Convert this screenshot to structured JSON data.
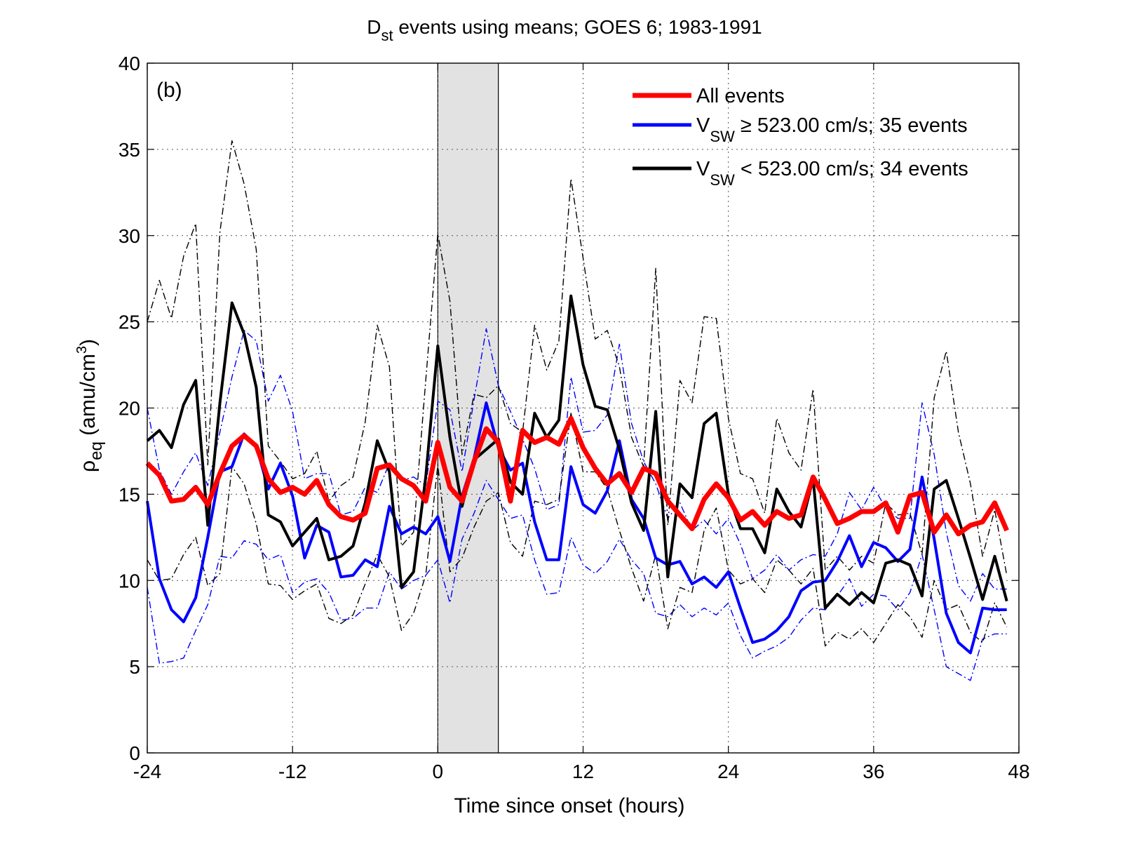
{
  "chart_data": {
    "type": "line",
    "title": {
      "main": "D",
      "sub": "st",
      "rest": " events using means; GOES 6; 1983-1991"
    },
    "panel_label": "(b)",
    "xlabel": "Time since onset (hours)",
    "ylabel": {
      "main": "ρ",
      "sub": "eq",
      "rest": " (amu/cm",
      "sup": "3",
      "close": ")"
    },
    "xlim": [
      -24,
      48
    ],
    "ylim": [
      0,
      40
    ],
    "xticks": [
      -24,
      -12,
      0,
      12,
      24,
      36,
      48
    ],
    "yticks": [
      0,
      5,
      10,
      15,
      20,
      25,
      30,
      35,
      40
    ],
    "grid": true,
    "shaded_interval": [
      0,
      5
    ],
    "legend_position": "top-right",
    "legend": [
      {
        "main": "All events",
        "sub": "",
        "rest": "",
        "color": "#ff0000"
      },
      {
        "main": "V",
        "sub": "SW",
        "rest": " ≥ 523.00 cm/s; 35 events",
        "color": "#0000ff"
      },
      {
        "main": "V",
        "sub": "SW",
        "rest": " < 523.00 cm/s; 34 events",
        "color": "#000000"
      }
    ],
    "x": [
      -24,
      -23,
      -22,
      -21,
      -20,
      -19,
      -18,
      -17,
      -16,
      -15,
      -14,
      -13,
      -12,
      -11,
      -10,
      -9,
      -8,
      -7,
      -6,
      -5,
      -4,
      -3,
      -2,
      -1,
      0,
      1,
      2,
      3,
      4,
      5,
      6,
      7,
      8,
      9,
      10,
      11,
      12,
      13,
      14,
      15,
      16,
      17,
      18,
      19,
      20,
      21,
      22,
      23,
      24,
      25,
      26,
      27,
      28,
      29,
      30,
      31,
      32,
      33,
      34,
      35,
      36,
      37,
      38,
      39,
      40,
      41,
      42,
      43,
      44,
      45,
      46,
      47
    ],
    "series": [
      {
        "color": "#ff0000",
        "style": "solid",
        "width": 7,
        "values": [
          16.8,
          16.1,
          14.6,
          14.7,
          15.4,
          14.4,
          16.2,
          17.8,
          18.4,
          17.8,
          15.9,
          15.1,
          15.4,
          15.0,
          15.8,
          14.4,
          13.7,
          13.5,
          13.9,
          16.5,
          16.7,
          15.9,
          15.5,
          14.6,
          18.0,
          15.4,
          14.6,
          16.9,
          18.8,
          18.0,
          14.6,
          18.7,
          18.0,
          18.3,
          17.9,
          19.4,
          17.7,
          16.5,
          15.6,
          16.2,
          15.1,
          16.5,
          16.2,
          14.6,
          13.8,
          13.0,
          14.7,
          15.6,
          14.8,
          13.5,
          14.0,
          13.2,
          14.0,
          13.6,
          13.8,
          16.0,
          14.7,
          13.3,
          13.6,
          14.0,
          14.0,
          14.5,
          12.8,
          14.9,
          15.1,
          12.8,
          13.8,
          12.7,
          13.2,
          13.4,
          14.5,
          12.9
        ]
      },
      {
        "color": "#0000ff",
        "style": "solid",
        "width": 4,
        "values": [
          14.6,
          10.1,
          8.3,
          7.6,
          9.0,
          12.5,
          16.3,
          16.6,
          18.5,
          17.8,
          15.3,
          16.8,
          14.9,
          11.3,
          13.2,
          12.8,
          10.2,
          10.3,
          11.2,
          10.8,
          14.3,
          12.7,
          13.1,
          12.7,
          13.7,
          11.1,
          14.9,
          17.1,
          20.3,
          17.7,
          16.4,
          16.8,
          13.4,
          11.2,
          11.2,
          16.6,
          14.4,
          13.9,
          15.2,
          18.1,
          14.7,
          13.6,
          11.3,
          10.9,
          11.1,
          9.8,
          10.2,
          9.6,
          10.5,
          8.4,
          6.4,
          6.6,
          7.1,
          7.9,
          9.4,
          9.9,
          10.0,
          11.1,
          12.6,
          10.8,
          12.2,
          11.9,
          11.1,
          11.8,
          16.0,
          12.4,
          8.1,
          6.4,
          5.8,
          8.4,
          8.3,
          8.3
        ]
      },
      {
        "color": "#000000",
        "style": "solid",
        "width": 4,
        "values": [
          18.1,
          18.7,
          17.7,
          20.2,
          21.6,
          13.2,
          20.3,
          26.1,
          24.3,
          21.2,
          13.8,
          13.4,
          12.0,
          12.8,
          13.6,
          11.2,
          11.4,
          12.0,
          14.5,
          18.1,
          16.3,
          9.6,
          10.5,
          16.0,
          23.6,
          18.3,
          14.3,
          17.0,
          17.6,
          18.2,
          15.7,
          15.0,
          19.7,
          18.3,
          19.3,
          26.5,
          22.5,
          20.1,
          19.9,
          17.6,
          14.5,
          12.9,
          19.8,
          10.2,
          15.6,
          14.8,
          19.1,
          19.7,
          15.0,
          13.0,
          13.0,
          11.6,
          15.3,
          14.0,
          13.1,
          15.9,
          8.4,
          9.2,
          8.6,
          9.3,
          8.7,
          11.0,
          11.2,
          10.9,
          9.1,
          15.3,
          15.8,
          13.6,
          11.3,
          8.9,
          11.4,
          8.8
        ]
      },
      {
        "color": "#0000ff",
        "style": "dashdot",
        "width": 1.4,
        "values": [
          20.0,
          16.4,
          15.0,
          16.3,
          17.4,
          15.5,
          18.6,
          21.8,
          24.5,
          23.9,
          20.4,
          21.9,
          19.8,
          15.9,
          16.2,
          16.2,
          13.8,
          14.0,
          15.4,
          15.1,
          16.8,
          15.8,
          16.0,
          15.5,
          20.4,
          19.9,
          16.3,
          20.5,
          24.6,
          21.3,
          19.8,
          18.2,
          16.5,
          14.1,
          14.4,
          21.8,
          18.6,
          18.7,
          19.6,
          23.7,
          19.1,
          16.9,
          15.6,
          13.6,
          14.5,
          12.9,
          13.5,
          12.7,
          13.6,
          12.1,
          10.1,
          10.6,
          11.5,
          10.6,
          11.2,
          11.5,
          11.4,
          12.7,
          15.1,
          14.1,
          15.4,
          14.2,
          13.6,
          13.6,
          20.3,
          17.3,
          12.8,
          9.7,
          8.8,
          10.4,
          9.5,
          9.5
        ]
      },
      {
        "color": "#0000ff",
        "style": "dashdot",
        "width": 1.4,
        "values": [
          9.6,
          5.2,
          5.3,
          5.5,
          7.1,
          8.6,
          11.4,
          11.3,
          12.3,
          12.1,
          11.2,
          11.5,
          9.3,
          9.9,
          10.1,
          9.3,
          7.7,
          7.8,
          8.4,
          8.4,
          10.5,
          9.5,
          10.0,
          10.3,
          11.2,
          8.7,
          12.4,
          13.9,
          15.8,
          14.7,
          13.6,
          13.8,
          11.2,
          9.2,
          9.3,
          12.5,
          10.9,
          10.4,
          11.1,
          12.4,
          11.2,
          10.4,
          8.1,
          7.9,
          8.6,
          7.9,
          8.4,
          8.0,
          8.7,
          6.8,
          5.5,
          5.9,
          6.2,
          6.7,
          7.7,
          8.4,
          8.3,
          9.1,
          10.1,
          8.5,
          9.2,
          9.1,
          8.3,
          9.3,
          11.5,
          8.3,
          5.0,
          4.6,
          4.2,
          6.6,
          6.9,
          6.9
        ]
      },
      {
        "color": "#000000",
        "style": "dashdot",
        "width": 1.4,
        "values": [
          25.0,
          27.4,
          25.2,
          28.8,
          30.7,
          16.7,
          30.2,
          35.5,
          33.0,
          29.2,
          17.8,
          16.9,
          15.9,
          16.2,
          17.5,
          14.6,
          15.5,
          16.0,
          19.2,
          24.8,
          22.4,
          12.0,
          12.8,
          21.6,
          30.1,
          26.2,
          17.3,
          20.8,
          20.6,
          21.3,
          19.1,
          18.6,
          24.8,
          22.2,
          23.9,
          33.3,
          28.7,
          24.0,
          24.5,
          22.4,
          18.3,
          16.6,
          28.1,
          13.2,
          21.6,
          20.3,
          25.3,
          25.2,
          19.4,
          16.2,
          15.9,
          13.9,
          19.4,
          17.4,
          16.4,
          21.1,
          10.6,
          11.4,
          10.6,
          11.4,
          11.0,
          14.5,
          13.8,
          13.9,
          11.5,
          20.6,
          23.3,
          18.6,
          15.6,
          11.4,
          14.1,
          10.3
        ]
      },
      {
        "color": "#000000",
        "style": "dashdot",
        "width": 1.4,
        "values": [
          11.2,
          10.0,
          10.1,
          11.5,
          12.5,
          9.7,
          10.4,
          16.6,
          15.6,
          13.3,
          9.8,
          9.7,
          8.9,
          9.4,
          9.8,
          7.8,
          7.5,
          8.0,
          9.8,
          11.5,
          10.2,
          7.1,
          8.1,
          10.3,
          16.7,
          10.5,
          11.3,
          13.1,
          14.6,
          15.1,
          12.2,
          11.4,
          14.6,
          14.4,
          14.7,
          19.7,
          16.3,
          16.3,
          15.3,
          12.9,
          10.7,
          8.8,
          11.5,
          7.2,
          9.6,
          9.3,
          12.9,
          14.2,
          10.6,
          9.8,
          10.1,
          9.3,
          11.2,
          10.6,
          9.8,
          10.7,
          6.2,
          7.0,
          6.6,
          7.2,
          6.4,
          7.5,
          8.6,
          7.9,
          6.7,
          10.0,
          8.3,
          8.6,
          7.0,
          6.4,
          8.7,
          7.3
        ]
      }
    ]
  }
}
